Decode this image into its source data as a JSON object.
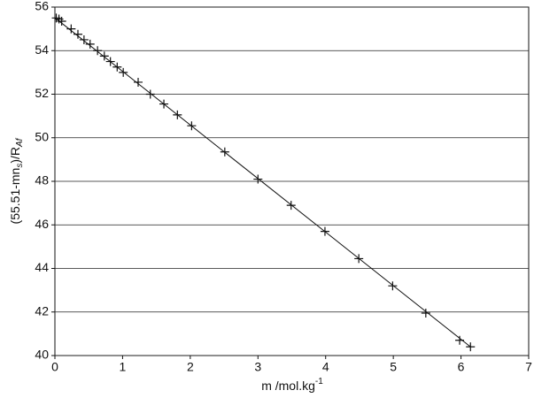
{
  "chart_data": {
    "type": "scatter",
    "x_label": [
      "m  /mol.kg",
      "-1"
    ],
    "y_label": [
      "(55.51-mn",
      "s",
      ")/R",
      "Af"
    ],
    "x": [
      0.02,
      0.06,
      0.1,
      0.24,
      0.34,
      0.43,
      0.52,
      0.63,
      0.73,
      0.82,
      0.92,
      1.01,
      1.23,
      1.41,
      1.61,
      1.81,
      2.02,
      2.51,
      3.0,
      3.49,
      3.99,
      4.49,
      4.99,
      5.48,
      5.98,
      6.14
    ],
    "values": [
      55.5,
      55.45,
      55.35,
      55.0,
      54.75,
      54.5,
      54.3,
      54.0,
      53.75,
      53.5,
      53.25,
      53.0,
      52.55,
      52.0,
      51.55,
      51.05,
      50.55,
      49.35,
      48.1,
      46.9,
      45.7,
      44.45,
      43.2,
      41.95,
      40.7,
      40.4
    ],
    "color": "#111111",
    "line": {
      "x": [
        0,
        6.14
      ],
      "values": [
        55.51,
        40.4
      ]
    },
    "xlim": [
      0,
      7
    ],
    "xticks": [
      0,
      1,
      2,
      3,
      4,
      5,
      6,
      7
    ],
    "ylim": [
      40,
      56
    ],
    "yticks": [
      40,
      42,
      44,
      46,
      48,
      50,
      52,
      54,
      56
    ],
    "grid": true
  }
}
